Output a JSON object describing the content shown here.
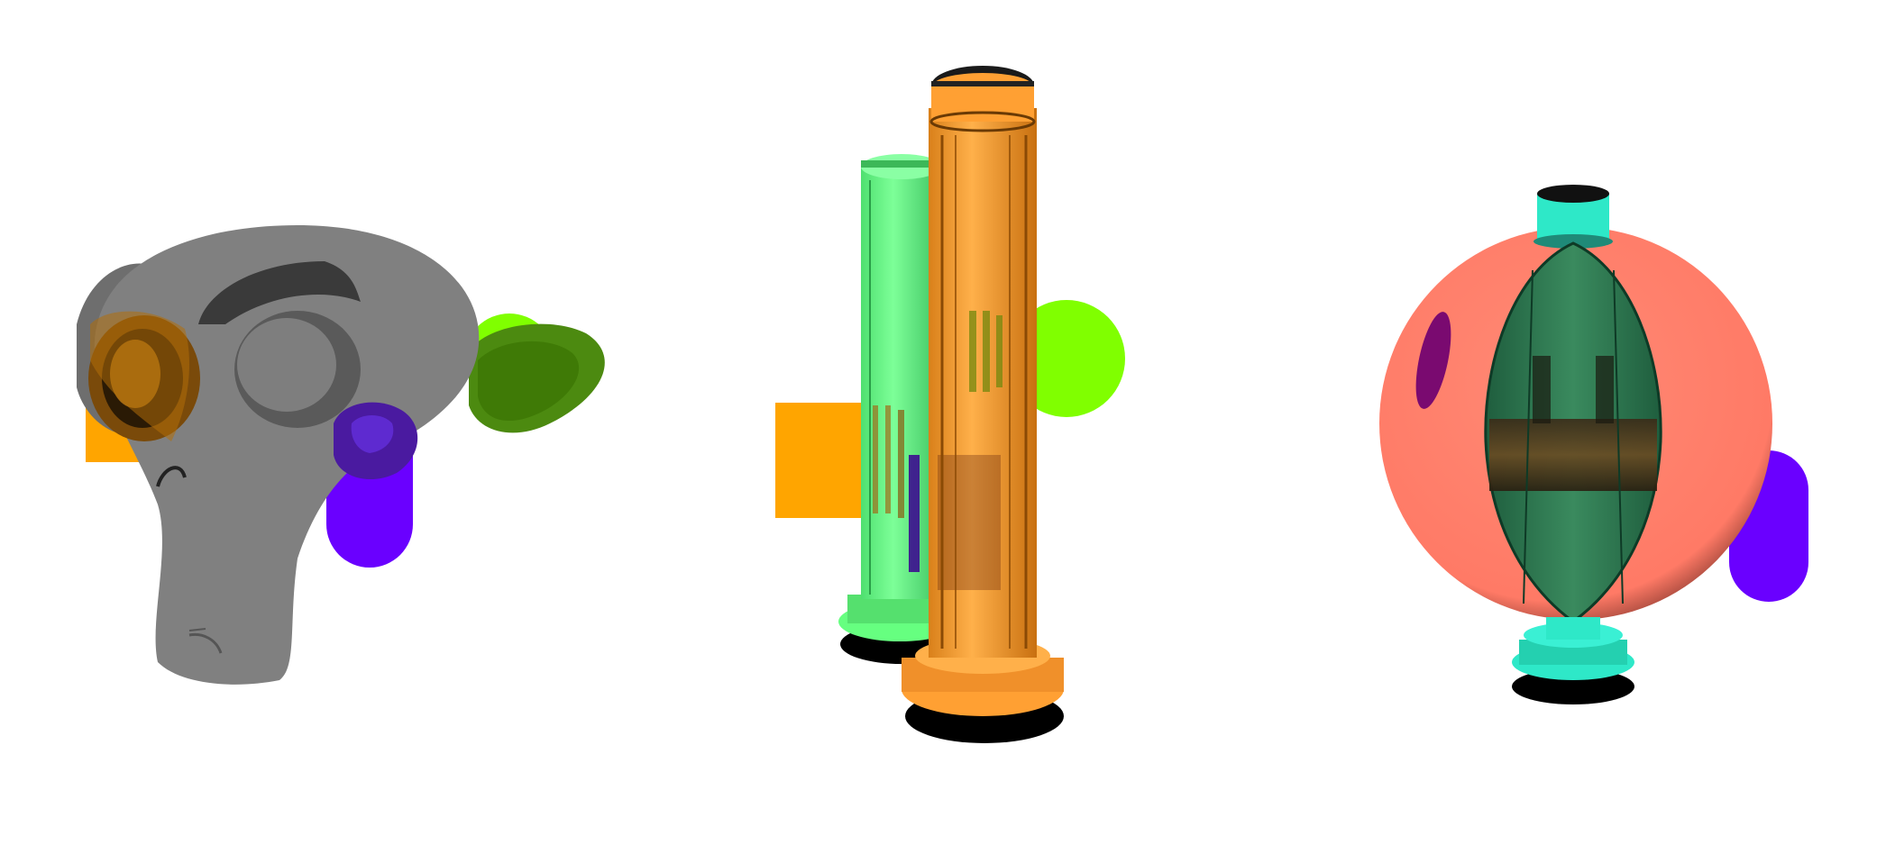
{
  "scene": {
    "background": "#ffffff",
    "groups": [
      {
        "name": "monkey-head-group",
        "objects": [
          {
            "name": "orange-square",
            "shape": "square",
            "color": "#ffa500"
          },
          {
            "name": "green-circle",
            "shape": "circle",
            "color": "#80ff00"
          },
          {
            "name": "purple-capsule",
            "shape": "capsule",
            "color": "#6a00ff"
          },
          {
            "name": "monkey-head",
            "shape": "monkey-head",
            "color": "#808080"
          }
        ]
      },
      {
        "name": "columns-group",
        "objects": [
          {
            "name": "orange-square",
            "shape": "square",
            "color": "#ffa500"
          },
          {
            "name": "green-circle",
            "shape": "circle",
            "color": "#80ff00"
          },
          {
            "name": "green-glass-column",
            "shape": "column",
            "color": "#66ff80"
          },
          {
            "name": "orange-glass-column",
            "shape": "column",
            "color": "#ffa033"
          }
        ]
      },
      {
        "name": "sphere-group",
        "objects": [
          {
            "name": "purple-capsule",
            "shape": "capsule",
            "color": "#6a00ff"
          },
          {
            "name": "salmon-sphere",
            "shape": "sphere",
            "color": "#ff7f6a"
          },
          {
            "name": "teal-glass-vase",
            "shape": "vase",
            "color": "#2ee8c8"
          }
        ]
      }
    ]
  }
}
